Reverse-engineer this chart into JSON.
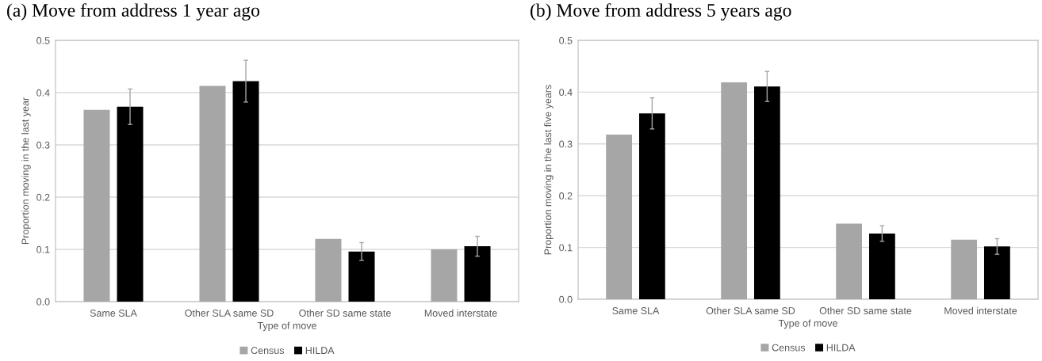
{
  "chart_data": [
    {
      "type": "bar",
      "title": "(a) Move from address 1 year ago",
      "xlabel": "Type of move",
      "ylabel": "Proportion moving in the last year",
      "categories": [
        "Same SLA",
        "Other SLA same SD",
        "Other SD same state",
        "Moved interstate"
      ],
      "series": [
        {
          "name": "Census",
          "color": "#a6a6a6",
          "values": [
            0.367,
            0.413,
            0.12,
            0.1
          ]
        },
        {
          "name": "HILDA",
          "color": "#000000",
          "values": [
            0.373,
            0.422,
            0.096,
            0.106
          ],
          "errors": [
            0.034,
            0.04,
            0.017,
            0.019
          ]
        }
      ],
      "ylim": [
        0,
        0.5
      ],
      "yticks": [
        {
          "value": 0,
          "label": "0.0"
        },
        0.1,
        0.2,
        0.3,
        0.4,
        0.5
      ],
      "grid": "y",
      "legend": "bottom"
    },
    {
      "type": "bar",
      "title": "(b) Move from address 5 years ago",
      "xlabel": "Type of move",
      "ylabel": "Proportion moving in the last five years",
      "categories": [
        "Same SLA",
        "Other SLA same SD",
        "Other SD same state",
        "Moved interstate"
      ],
      "series": [
        {
          "name": "Census",
          "color": "#a6a6a6",
          "values": [
            0.318,
            0.419,
            0.146,
            0.115
          ]
        },
        {
          "name": "HILDA",
          "color": "#000000",
          "values": [
            0.359,
            0.411,
            0.127,
            0.102
          ],
          "errors": [
            0.03,
            0.029,
            0.015,
            0.015
          ]
        }
      ],
      "ylim": [
        0,
        0.5
      ],
      "yticks": [
        {
          "value": 0,
          "label": "0.0"
        },
        0.1,
        0.2,
        0.3,
        0.4,
        0.5
      ],
      "grid": "y",
      "legend": "bottom"
    }
  ]
}
